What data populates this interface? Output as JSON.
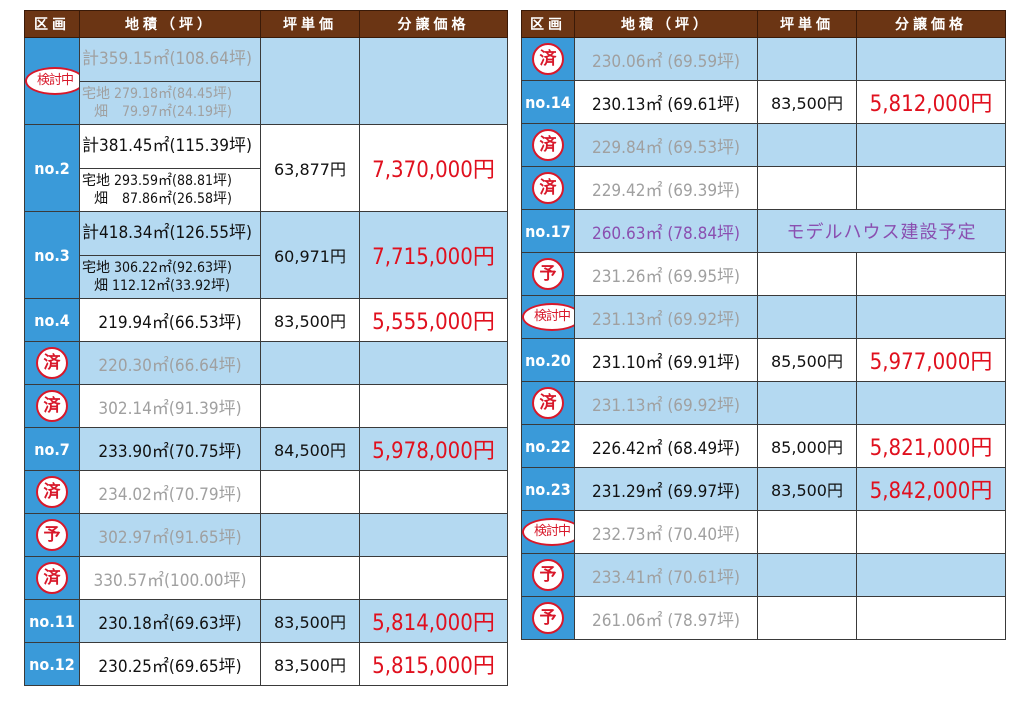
{
  "headers": {
    "kukaku": "区画",
    "area": "地積（坪）",
    "tanka": "坪単価",
    "price": "分譲価格"
  },
  "left_rows": [
    {
      "type": "multi",
      "stamp": "検討中",
      "stamp_style": "oval",
      "gray": true,
      "total": "計359.15㎡(108.64坪)",
      "line1": "宅地 279.18㎡(84.45坪)",
      "line2": "畑　79.97㎡(24.19坪)",
      "tanka": "",
      "price": "",
      "bg": "blue"
    },
    {
      "type": "multi",
      "label": "no.2",
      "gray": false,
      "total": "計381.45㎡(115.39坪)",
      "line1": "宅地 293.59㎡(88.81坪)",
      "line2": "畑　87.86㎡(26.58坪)",
      "tanka": "63,877円",
      "price": "7,370,000円",
      "bg": "white"
    },
    {
      "type": "multi",
      "label": "no.3",
      "gray": false,
      "total": "計418.34㎡(126.55坪)",
      "line1": "宅地 306.22㎡(92.63坪)",
      "line2": "畑 112.12㎡(33.92坪)",
      "tanka": "60,971円",
      "price": "7,715,000円",
      "bg": "blue"
    },
    {
      "type": "single",
      "label": "no.4",
      "area": "219.94㎡(66.53坪)",
      "tanka": "83,500円",
      "price": "5,555,000円",
      "bg": "white"
    },
    {
      "type": "single",
      "stamp": "済",
      "gray": true,
      "area": "220.30㎡(66.64坪)",
      "tanka": "",
      "price": "",
      "bg": "blue"
    },
    {
      "type": "single",
      "stamp": "済",
      "gray": true,
      "area": "302.14㎡(91.39坪)",
      "tanka": "",
      "price": "",
      "bg": "white"
    },
    {
      "type": "single",
      "label": "no.7",
      "area": "233.90㎡(70.75坪)",
      "tanka": "84,500円",
      "price": "5,978,000円",
      "bg": "blue"
    },
    {
      "type": "single",
      "stamp": "済",
      "gray": true,
      "area": "234.02㎡(70.79坪)",
      "tanka": "",
      "price": "",
      "bg": "white"
    },
    {
      "type": "single",
      "stamp": "予",
      "gray": true,
      "area": "302.97㎡(91.65坪)",
      "tanka": "",
      "price": "",
      "bg": "blue"
    },
    {
      "type": "single",
      "stamp": "済",
      "gray": true,
      "area": "330.57㎡(100.00坪)",
      "tanka": "",
      "price": "",
      "bg": "white"
    },
    {
      "type": "single",
      "label": "no.11",
      "area": "230.18㎡(69.63坪)",
      "tanka": "83,500円",
      "price": "5,814,000円",
      "bg": "blue"
    },
    {
      "type": "single",
      "label": "no.12",
      "area": "230.25㎡(69.65坪)",
      "tanka": "83,500円",
      "price": "5,815,000円",
      "bg": "white"
    }
  ],
  "right_rows": [
    {
      "stamp": "済",
      "gray": true,
      "area": "230.06㎡ (69.59坪)",
      "tanka": "",
      "price": "",
      "bg": "blue"
    },
    {
      "label": "no.14",
      "area": "230.13㎡ (69.61坪)",
      "tanka": "83,500円",
      "price": "5,812,000円",
      "bg": "white"
    },
    {
      "stamp": "済",
      "gray": true,
      "area": "229.84㎡ (69.53坪)",
      "tanka": "",
      "price": "",
      "bg": "blue"
    },
    {
      "stamp": "済",
      "gray": true,
      "area": "229.42㎡ (69.39坪)",
      "tanka": "",
      "price": "",
      "bg": "white"
    },
    {
      "label": "no.17",
      "purple": true,
      "area": "260.63㎡ (78.84坪)",
      "note": "モデルハウス建設予定",
      "bg": "blue"
    },
    {
      "stamp": "予",
      "gray": true,
      "area": "231.26㎡ (69.95坪)",
      "tanka": "",
      "price": "",
      "bg": "white"
    },
    {
      "stamp": "検討中",
      "stamp_style": "oval",
      "gray": true,
      "area": "231.13㎡ (69.92坪)",
      "tanka": "",
      "price": "",
      "bg": "blue"
    },
    {
      "label": "no.20",
      "area": "231.10㎡ (69.91坪)",
      "tanka": "85,500円",
      "price": "5,977,000円",
      "bg": "white"
    },
    {
      "stamp": "済",
      "gray": true,
      "area": "231.13㎡ (69.92坪)",
      "tanka": "",
      "price": "",
      "bg": "blue"
    },
    {
      "label": "no.22",
      "area": "226.42㎡ (68.49坪)",
      "tanka": "85,000円",
      "price": "5,821,000円",
      "bg": "white"
    },
    {
      "label": "no.23",
      "area": "231.29㎡ (69.97坪)",
      "tanka": "83,500円",
      "price": "5,842,000円",
      "bg": "blue"
    },
    {
      "stamp": "検討中",
      "stamp_style": "oval",
      "gray": true,
      "area": "232.73㎡ (70.40坪)",
      "tanka": "",
      "price": "",
      "bg": "white"
    },
    {
      "stamp": "予",
      "gray": true,
      "area": "233.41㎡ (70.61坪)",
      "tanka": "",
      "price": "",
      "bg": "blue"
    },
    {
      "stamp": "予",
      "gray": true,
      "area": "261.06㎡ (78.97坪)",
      "tanka": "",
      "price": "",
      "bg": "white"
    }
  ],
  "colors": {
    "header_bg": "#6b3514",
    "kukaku_bg": "#3a9ad9",
    "row_blue": "#b4d9f1",
    "price_red": "#e0101e",
    "stamp_red": "#d8182a",
    "gray_text": "#a0a0a0",
    "purple": "#8a4fb0"
  }
}
